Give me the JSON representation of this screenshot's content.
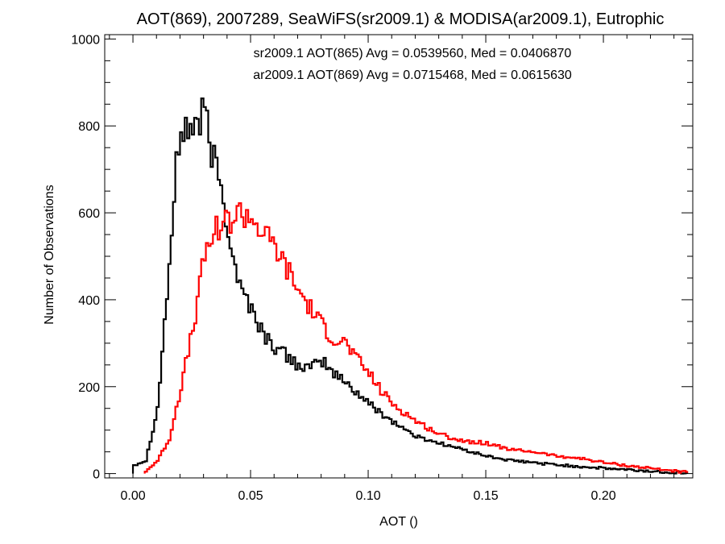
{
  "chart_data": {
    "type": "histogram",
    "title": "AOT(869), 2007289, SeaWiFS(sr2009.1) & MODISA(ar2009.1), Eutrophic",
    "xlabel": "AOT ()",
    "ylabel": "Number of Observations",
    "xlim": [
      -0.012,
      0.238
    ],
    "ylim": [
      -10,
      1010
    ],
    "x_ticks": [
      0.0,
      0.05,
      0.1,
      0.15,
      0.2
    ],
    "x_tick_labels": [
      "0.00",
      "0.05",
      "0.10",
      "0.15",
      "0.20"
    ],
    "y_ticks": [
      0,
      200,
      400,
      600,
      800,
      1000
    ],
    "y_tick_labels": [
      "0",
      "200",
      "400",
      "600",
      "800",
      "1000"
    ],
    "grid": false,
    "annotations": [
      {
        "text": "sr2009.1 AOT(865) Avg = 0.0539560, Med = 0.0406870",
        "color": "#000000"
      },
      {
        "text": "ar2009.1 AOT(869) Avg = 0.0715468, Med = 0.0615630",
        "color": "#ff0000"
      }
    ],
    "series": [
      {
        "color": "#000000",
        "x": [
          0.0,
          0.005,
          0.01,
          0.015,
          0.018,
          0.02,
          0.022,
          0.025,
          0.028,
          0.03,
          0.032,
          0.035,
          0.038,
          0.04,
          0.045,
          0.05,
          0.055,
          0.06,
          0.065,
          0.07,
          0.075,
          0.08,
          0.085,
          0.09,
          0.1,
          0.11,
          0.12,
          0.13,
          0.14,
          0.15,
          0.16,
          0.18,
          0.2,
          0.22,
          0.235
        ],
        "y": [
          20,
          30,
          150,
          480,
          700,
          800,
          790,
          800,
          810,
          830,
          760,
          700,
          640,
          560,
          430,
          380,
          320,
          290,
          270,
          250,
          240,
          260,
          230,
          210,
          160,
          120,
          85,
          70,
          55,
          40,
          30,
          20,
          12,
          5,
          2
        ]
      },
      {
        "color": "#ff0000",
        "x": [
          0.005,
          0.01,
          0.015,
          0.02,
          0.025,
          0.03,
          0.035,
          0.04,
          0.045,
          0.05,
          0.055,
          0.06,
          0.065,
          0.07,
          0.075,
          0.08,
          0.085,
          0.09,
          0.095,
          0.1,
          0.105,
          0.11,
          0.12,
          0.13,
          0.14,
          0.15,
          0.16,
          0.17,
          0.18,
          0.19,
          0.2,
          0.21,
          0.22,
          0.23,
          0.235
        ],
        "y": [
          5,
          30,
          80,
          200,
          330,
          500,
          570,
          580,
          600,
          590,
          550,
          520,
          470,
          420,
          380,
          340,
          310,
          300,
          260,
          230,
          190,
          160,
          120,
          90,
          75,
          70,
          55,
          50,
          40,
          35,
          25,
          18,
          12,
          6,
          3
        ]
      }
    ]
  }
}
